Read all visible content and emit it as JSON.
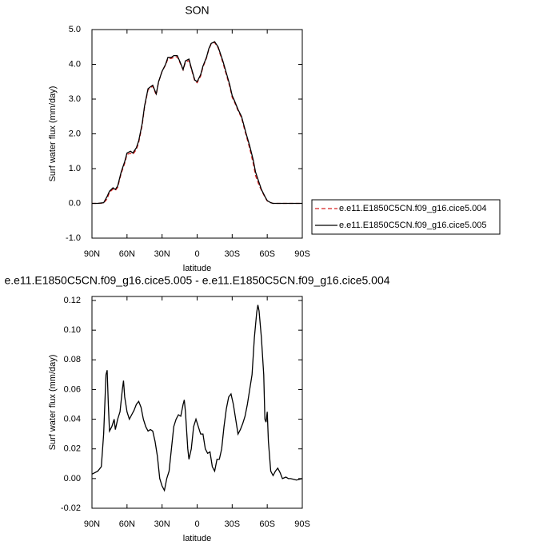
{
  "chart_data": [
    {
      "type": "line",
      "title": "SON",
      "xlabel": "latitude",
      "ylabel": "Surf water flux (mm/day)",
      "x": [
        90,
        85,
        80,
        77,
        75,
        72,
        70,
        68,
        65,
        62,
        60,
        57,
        55,
        52,
        50,
        47,
        45,
        42,
        40,
        38,
        35,
        33,
        30,
        27,
        25,
        22,
        20,
        17,
        15,
        12,
        10,
        7,
        5,
        2,
        0,
        -3,
        -5,
        -8,
        -10,
        -12,
        -15,
        -18,
        -20,
        -22,
        -25,
        -28,
        -30,
        -32,
        -35,
        -38,
        -40,
        -42,
        -45,
        -48,
        -50,
        -53,
        -55,
        -58,
        -60,
        -63,
        -65,
        -70,
        -80,
        -90
      ],
      "series": [
        {
          "name": "e.e11.E1850C5CN.f09_g16.cice5.004",
          "color": "#d62020",
          "dash": "dashed",
          "values": [
            0,
            0,
            0.01,
            0.13,
            0.32,
            0.41,
            0.37,
            0.46,
            0.86,
            1.15,
            1.41,
            1.44,
            1.41,
            1.55,
            1.75,
            2.25,
            2.77,
            3.27,
            3.32,
            3.37,
            3.12,
            3.49,
            3.8,
            3.98,
            4.16,
            4.17,
            4.2,
            4.22,
            4.07,
            3.84,
            4.06,
            4.11,
            3.87,
            3.52,
            3.47,
            3.66,
            3.92,
            4.18,
            4.43,
            4.58,
            4.63,
            4.47,
            4.26,
            4.05,
            3.7,
            3.35,
            3.05,
            2.91,
            2.67,
            2.46,
            2.2,
            1.95,
            1.58,
            1.15,
            0.8,
            0.52,
            0.38,
            0.18,
            0.07,
            0.02,
            0,
            0,
            0,
            0
          ]
        },
        {
          "name": "e.e11.E1850C5CN.f09_g16.cice5.005",
          "color": "#000000",
          "dash": "solid",
          "values": [
            0,
            0,
            0.02,
            0.2,
            0.35,
            0.45,
            0.4,
            0.5,
            0.9,
            1.2,
            1.45,
            1.5,
            1.45,
            1.6,
            1.8,
            2.3,
            2.8,
            3.3,
            3.35,
            3.4,
            3.15,
            3.5,
            3.8,
            4.0,
            4.2,
            4.2,
            4.25,
            4.25,
            4.1,
            3.85,
            4.1,
            4.15,
            3.9,
            3.55,
            3.5,
            3.7,
            3.95,
            4.2,
            4.45,
            4.6,
            4.65,
            4.5,
            4.3,
            4.1,
            3.75,
            3.4,
            3.1,
            2.95,
            2.7,
            2.5,
            2.25,
            2.0,
            1.65,
            1.25,
            0.9,
            0.6,
            0.4,
            0.2,
            0.08,
            0.02,
            0,
            0,
            0,
            0
          ]
        }
      ],
      "xlim": [
        90,
        -90
      ],
      "xticks": [
        {
          "value": 90,
          "label": "90N"
        },
        {
          "value": 60,
          "label": "60N"
        },
        {
          "value": 30,
          "label": "30N"
        },
        0,
        {
          "value": -30,
          "label": "30S"
        },
        {
          "value": -60,
          "label": "60S"
        },
        {
          "value": -90,
          "label": "90S"
        }
      ],
      "ylim": [
        -1,
        5
      ],
      "yticks": [
        {
          "value": -1,
          "label": "-1.0"
        },
        {
          "value": 0,
          "label": "0.0"
        },
        {
          "value": 1,
          "label": "1.0"
        },
        {
          "value": 2,
          "label": "2.0"
        },
        {
          "value": 3,
          "label": "3.0"
        },
        {
          "value": 4,
          "label": "4.0"
        },
        {
          "value": 5,
          "label": "5.0"
        }
      ],
      "legend": "outside-right"
    },
    {
      "type": "line",
      "title": "e.e11.E1850C5CN.f09_g16.cice5.005 - e.e11.E1850C5CN.f09_g16.cice5.004",
      "xlabel": "latitude",
      "ylabel": "Surf water flux (mm/day)",
      "x": [
        90,
        85,
        82,
        80,
        78,
        77,
        76,
        75,
        73,
        71,
        70,
        68,
        66,
        64,
        63,
        62,
        60,
        58,
        56,
        54,
        52,
        50,
        48,
        46,
        44,
        42,
        40,
        38,
        36,
        34,
        32,
        30,
        28,
        26,
        24,
        22,
        20,
        18,
        16,
        14,
        12,
        11,
        10,
        8,
        7,
        5,
        3,
        1,
        -1,
        -3,
        -5,
        -7,
        -9,
        -11,
        -13,
        -15,
        -17,
        -19,
        -21,
        -23,
        -25,
        -27,
        -29,
        -31,
        -33,
        -35,
        -37,
        -39,
        -41,
        -43,
        -45,
        -47,
        -49,
        -51,
        -52,
        -53,
        -55,
        -57,
        -58,
        -59,
        -60,
        -61,
        -63,
        -65,
        -67,
        -69,
        -71,
        -73,
        -76,
        -78,
        -80,
        -85,
        -90
      ],
      "values": [
        0.003,
        0.005,
        0.008,
        0.03,
        0.07,
        0.073,
        0.05,
        0.032,
        0.035,
        0.04,
        0.033,
        0.04,
        0.045,
        0.06,
        0.066,
        0.055,
        0.045,
        0.04,
        0.043,
        0.046,
        0.05,
        0.052,
        0.048,
        0.04,
        0.035,
        0.032,
        0.033,
        0.032,
        0.025,
        0.015,
        0.0,
        -0.005,
        -0.008,
        0.0,
        0.005,
        0.02,
        0.035,
        0.04,
        0.043,
        0.042,
        0.05,
        0.053,
        0.045,
        0.02,
        0.013,
        0.02,
        0.035,
        0.04,
        0.035,
        0.03,
        0.03,
        0.02,
        0.017,
        0.018,
        0.008,
        0.005,
        0.013,
        0.013,
        0.02,
        0.035,
        0.047,
        0.055,
        0.057,
        0.05,
        0.04,
        0.03,
        0.033,
        0.037,
        0.042,
        0.05,
        0.06,
        0.07,
        0.095,
        0.112,
        0.117,
        0.113,
        0.095,
        0.07,
        0.04,
        0.038,
        0.045,
        0.025,
        0.005,
        0.002,
        0.005,
        0.007,
        0.004,
        0.0,
        0.001,
        0.0,
        0.0,
        -0.001,
        0.0
      ],
      "color": "#000000",
      "xlim": [
        90,
        -90
      ],
      "xticks": [
        {
          "value": 90,
          "label": "90N"
        },
        {
          "value": 60,
          "label": "60N"
        },
        {
          "value": 30,
          "label": "30N"
        },
        0,
        {
          "value": -30,
          "label": "30S"
        },
        {
          "value": -60,
          "label": "60S"
        },
        {
          "value": -90,
          "label": "90S"
        }
      ],
      "ylim": [
        -0.02,
        0.1227
      ],
      "yticks": [
        {
          "value": -0.02,
          "label": "-0.02"
        },
        {
          "value": 0,
          "label": "0.00"
        },
        {
          "value": 0.02,
          "label": "0.02"
        },
        {
          "value": 0.04,
          "label": "0.04"
        },
        {
          "value": 0.06,
          "label": "0.06"
        },
        {
          "value": 0.08,
          "label": "0.08"
        },
        {
          "value": 0.1,
          "label": "0.10"
        },
        {
          "value": 0.12,
          "label": "0.12"
        }
      ]
    }
  ]
}
